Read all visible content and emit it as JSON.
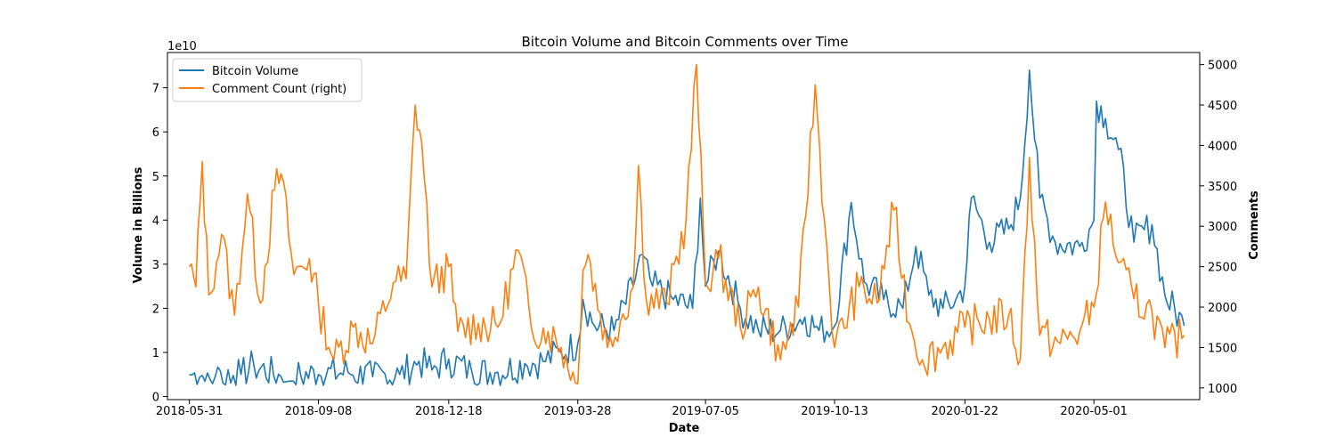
{
  "chart_data": {
    "type": "line",
    "title": "Bitcoin Volume and Bitcoin Comments over Time",
    "xlabel": "Date",
    "ylabel_left": "Volume in Billions",
    "ylabel_right": "Comments",
    "left_axis_multiplier": "1e10",
    "x_ticks": [
      "2018-05-31",
      "2018-09-08",
      "2018-12-18",
      "2019-03-28",
      "2019-07-05",
      "2019-10-13",
      "2020-01-22",
      "2020-05-01"
    ],
    "xlim": [
      "2018-05-14",
      "2020-07-22"
    ],
    "ylim_left": [
      -0.07,
      7.8
    ],
    "yticks_left": [
      0,
      1,
      2,
      3,
      4,
      5,
      6,
      7
    ],
    "ylim_right": [
      855,
      5150
    ],
    "yticks_right": [
      1000,
      1500,
      2000,
      2500,
      3000,
      3500,
      4000,
      4500,
      5000
    ],
    "legend_position": "upper-left",
    "colors": {
      "volume": "#1f77b4",
      "comments": "#ff7f0e"
    },
    "series": [
      {
        "name": "Bitcoin Volume",
        "axis": "left",
        "color": "#1f77b4",
        "points": [
          [
            "2018-05-31",
            0.5
          ],
          [
            "2018-06-20",
            0.45
          ],
          [
            "2018-07-10",
            0.5
          ],
          [
            "2018-07-20",
            0.7
          ],
          [
            "2018-08-10",
            0.45
          ],
          [
            "2018-09-08",
            0.5
          ],
          [
            "2018-10-01",
            0.55
          ],
          [
            "2018-10-20",
            0.45
          ],
          [
            "2018-11-10",
            0.5
          ],
          [
            "2018-11-25",
            0.8
          ],
          [
            "2018-12-05",
            0.6
          ],
          [
            "2018-12-18",
            0.85
          ],
          [
            "2019-01-05",
            0.55
          ],
          [
            "2019-01-25",
            0.55
          ],
          [
            "2019-02-15",
            0.75
          ],
          [
            "2019-03-01",
            0.8
          ],
          [
            "2019-03-15",
            1.0
          ],
          [
            "2019-03-28",
            1.2
          ],
          [
            "2019-04-01",
            2.2
          ],
          [
            "2019-04-10",
            1.6
          ],
          [
            "2019-04-25",
            1.5
          ],
          [
            "2019-05-10",
            2.5
          ],
          [
            "2019-05-15",
            3.2
          ],
          [
            "2019-05-25",
            2.5
          ],
          [
            "2019-06-10",
            2.2
          ],
          [
            "2019-06-25",
            2.0
          ],
          [
            "2019-07-01",
            4.5
          ],
          [
            "2019-07-05",
            2.5
          ],
          [
            "2019-07-15",
            3.3
          ],
          [
            "2019-08-01",
            2.0
          ],
          [
            "2019-08-15",
            1.5
          ],
          [
            "2019-09-01",
            1.5
          ],
          [
            "2019-09-20",
            1.8
          ],
          [
            "2019-10-01",
            1.5
          ],
          [
            "2019-10-13",
            1.6
          ],
          [
            "2019-10-26",
            4.4
          ],
          [
            "2019-11-05",
            2.6
          ],
          [
            "2019-11-20",
            2.2
          ],
          [
            "2019-12-05",
            2.0
          ],
          [
            "2019-12-15",
            3.4
          ],
          [
            "2019-12-25",
            2.3
          ],
          [
            "2020-01-05",
            2.0
          ],
          [
            "2020-01-15",
            2.2
          ],
          [
            "2020-01-22",
            2.5
          ],
          [
            "2020-01-27",
            4.5
          ],
          [
            "2020-02-10",
            3.5
          ],
          [
            "2020-02-25",
            3.8
          ],
          [
            "2020-03-05",
            4.5
          ],
          [
            "2020-03-12",
            7.4
          ],
          [
            "2020-03-20",
            4.5
          ],
          [
            "2020-04-01",
            3.5
          ],
          [
            "2020-04-20",
            3.4
          ],
          [
            "2020-05-01",
            4.0
          ],
          [
            "2020-05-03",
            6.7
          ],
          [
            "2020-05-10",
            6.3
          ],
          [
            "2020-05-20",
            5.6
          ],
          [
            "2020-06-01",
            3.5
          ],
          [
            "2020-06-15",
            3.9
          ],
          [
            "2020-06-25",
            2.3
          ],
          [
            "2020-07-10",
            1.6
          ]
        ]
      },
      {
        "name": "Comment Count (right)",
        "axis": "right",
        "color": "#ff7f0e",
        "points": [
          [
            "2018-05-31",
            2500
          ],
          [
            "2018-06-05",
            2250
          ],
          [
            "2018-06-10",
            3800
          ],
          [
            "2018-06-15",
            2150
          ],
          [
            "2018-06-25",
            2900
          ],
          [
            "2018-07-05",
            1900
          ],
          [
            "2018-07-15",
            3400
          ],
          [
            "2018-07-25",
            2050
          ],
          [
            "2018-08-05",
            3450
          ],
          [
            "2018-08-10",
            3650
          ],
          [
            "2018-08-20",
            2400
          ],
          [
            "2018-09-01",
            2600
          ],
          [
            "2018-09-08",
            2050
          ],
          [
            "2018-09-20",
            1350
          ],
          [
            "2018-10-05",
            1750
          ],
          [
            "2018-10-20",
            1550
          ],
          [
            "2018-11-05",
            2300
          ],
          [
            "2018-11-15",
            2350
          ],
          [
            "2018-11-22",
            4500
          ],
          [
            "2018-11-27",
            4050
          ],
          [
            "2018-12-05",
            2250
          ],
          [
            "2018-12-18",
            2500
          ],
          [
            "2018-12-25",
            1700
          ],
          [
            "2019-01-10",
            1800
          ],
          [
            "2019-01-25",
            1750
          ],
          [
            "2019-02-10",
            2700
          ],
          [
            "2019-02-20",
            1750
          ],
          [
            "2019-03-05",
            1700
          ],
          [
            "2019-03-15",
            1500
          ],
          [
            "2019-03-28",
            1050
          ],
          [
            "2019-04-01",
            2450
          ],
          [
            "2019-04-05",
            2650
          ],
          [
            "2019-04-20",
            1500
          ],
          [
            "2019-05-10",
            2250
          ],
          [
            "2019-05-14",
            3750
          ],
          [
            "2019-05-20",
            2100
          ],
          [
            "2019-06-05",
            2050
          ],
          [
            "2019-06-20",
            3100
          ],
          [
            "2019-06-28",
            5000
          ],
          [
            "2019-07-05",
            2300
          ],
          [
            "2019-07-15",
            2600
          ],
          [
            "2019-08-01",
            1750
          ],
          [
            "2019-08-15",
            2250
          ],
          [
            "2019-09-01",
            1350
          ],
          [
            "2019-09-15",
            2000
          ],
          [
            "2019-09-28",
            4750
          ],
          [
            "2019-10-05",
            3100
          ],
          [
            "2019-10-13",
            1500
          ],
          [
            "2019-11-01",
            2250
          ],
          [
            "2019-11-15",
            2050
          ],
          [
            "2019-11-28",
            3200
          ],
          [
            "2019-12-10",
            1800
          ],
          [
            "2019-12-20",
            1350
          ],
          [
            "2020-01-05",
            1500
          ],
          [
            "2020-01-22",
            1750
          ],
          [
            "2020-02-10",
            1850
          ],
          [
            "2020-02-25",
            1900
          ],
          [
            "2020-03-05",
            1350
          ],
          [
            "2020-03-12",
            3850
          ],
          [
            "2020-03-20",
            1650
          ],
          [
            "2020-04-05",
            1550
          ],
          [
            "2020-04-20",
            1700
          ],
          [
            "2020-05-01",
            2000
          ],
          [
            "2020-05-10",
            3300
          ],
          [
            "2020-05-20",
            2550
          ],
          [
            "2020-06-01",
            2100
          ],
          [
            "2020-06-15",
            1950
          ],
          [
            "2020-06-25",
            1500
          ],
          [
            "2020-07-10",
            1650
          ]
        ]
      }
    ]
  }
}
